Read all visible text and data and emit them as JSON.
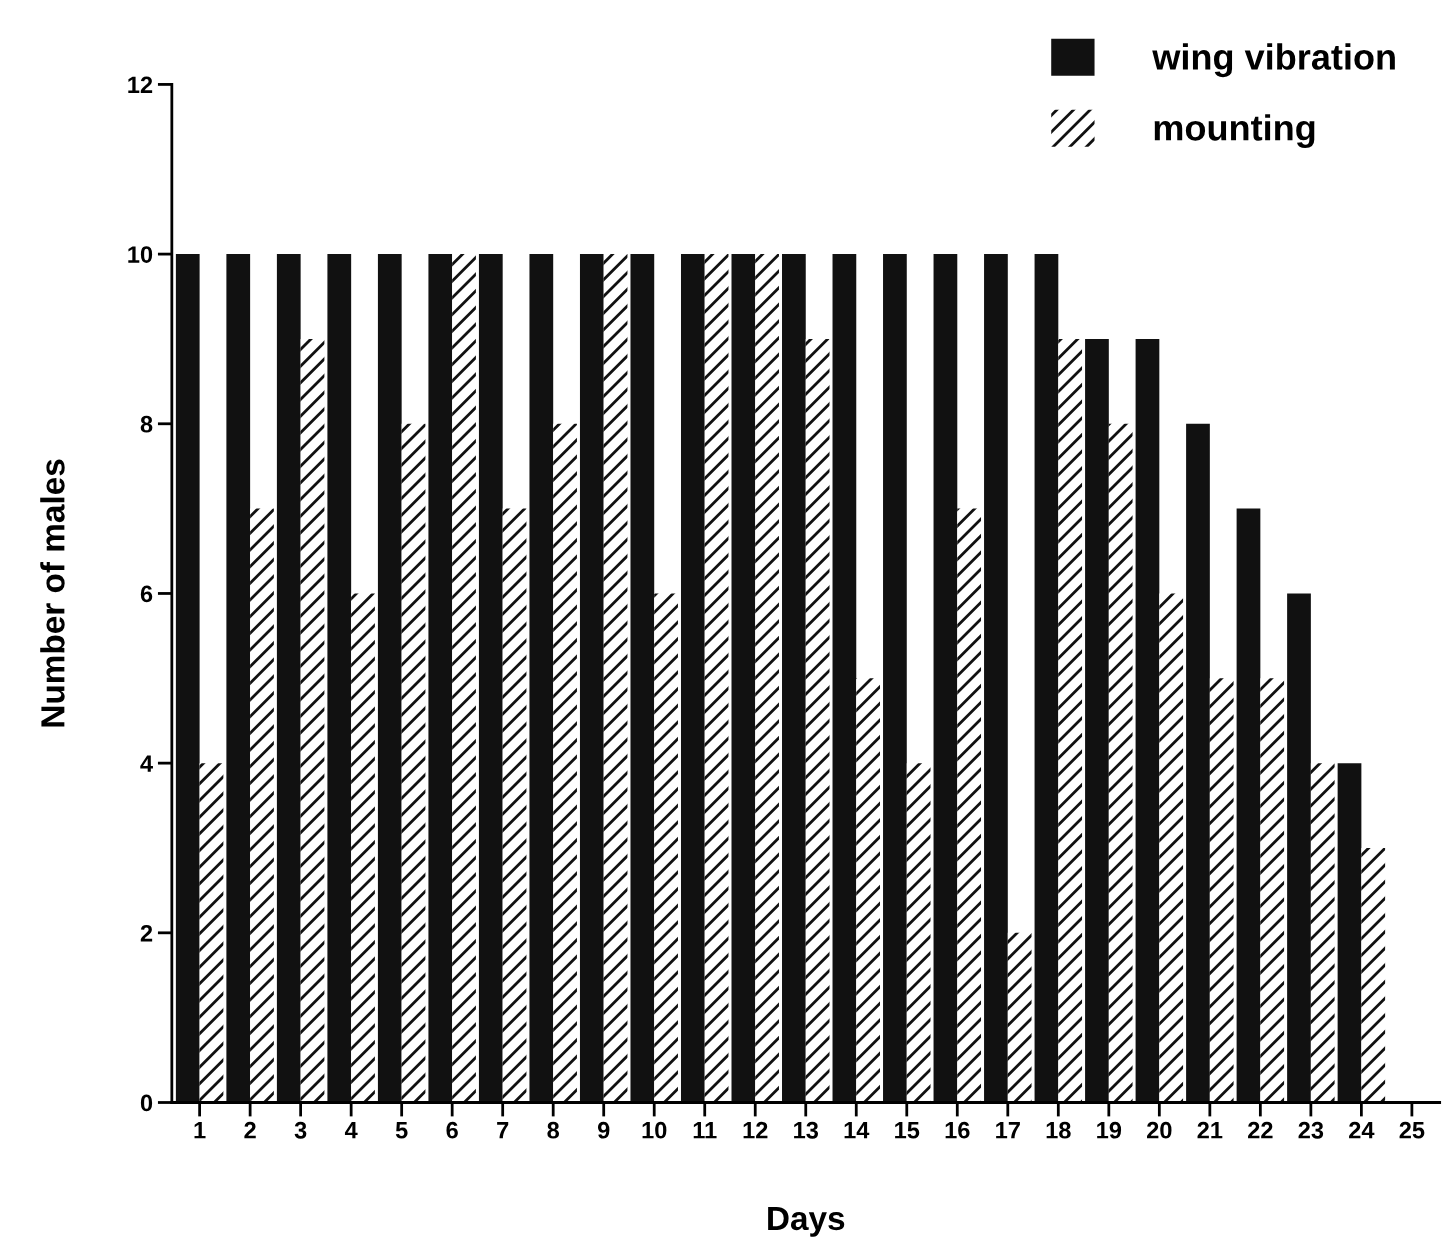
{
  "chart_data": {
    "type": "bar",
    "xlabel": "Days",
    "ylabel": "Number of males",
    "categories": [
      "1",
      "2",
      "3",
      "4",
      "5",
      "6",
      "7",
      "8",
      "9",
      "10",
      "11",
      "12",
      "13",
      "14",
      "15",
      "16",
      "17",
      "18",
      "19",
      "20",
      "21",
      "22",
      "23",
      "24",
      "25"
    ],
    "series": [
      {
        "name": "wing vibration",
        "color": "#111111",
        "values": [
          10,
          10,
          10,
          10,
          10,
          10,
          10,
          10,
          10,
          10,
          10,
          10,
          10,
          10,
          10,
          10,
          10,
          10,
          9,
          9,
          8,
          7,
          6,
          4,
          null
        ]
      },
      {
        "name": "mounting",
        "color": "#ffffff",
        "values": [
          4,
          7,
          9,
          6,
          8,
          10,
          7,
          8,
          10,
          6,
          10,
          10,
          9,
          5,
          4,
          7,
          2,
          9,
          8,
          6,
          5,
          5,
          4,
          3,
          null
        ]
      }
    ],
    "ylim": [
      0,
      12
    ],
    "yticks": [
      0,
      2,
      4,
      6,
      8,
      10,
      12
    ],
    "grid": false,
    "legend": "top right"
  }
}
